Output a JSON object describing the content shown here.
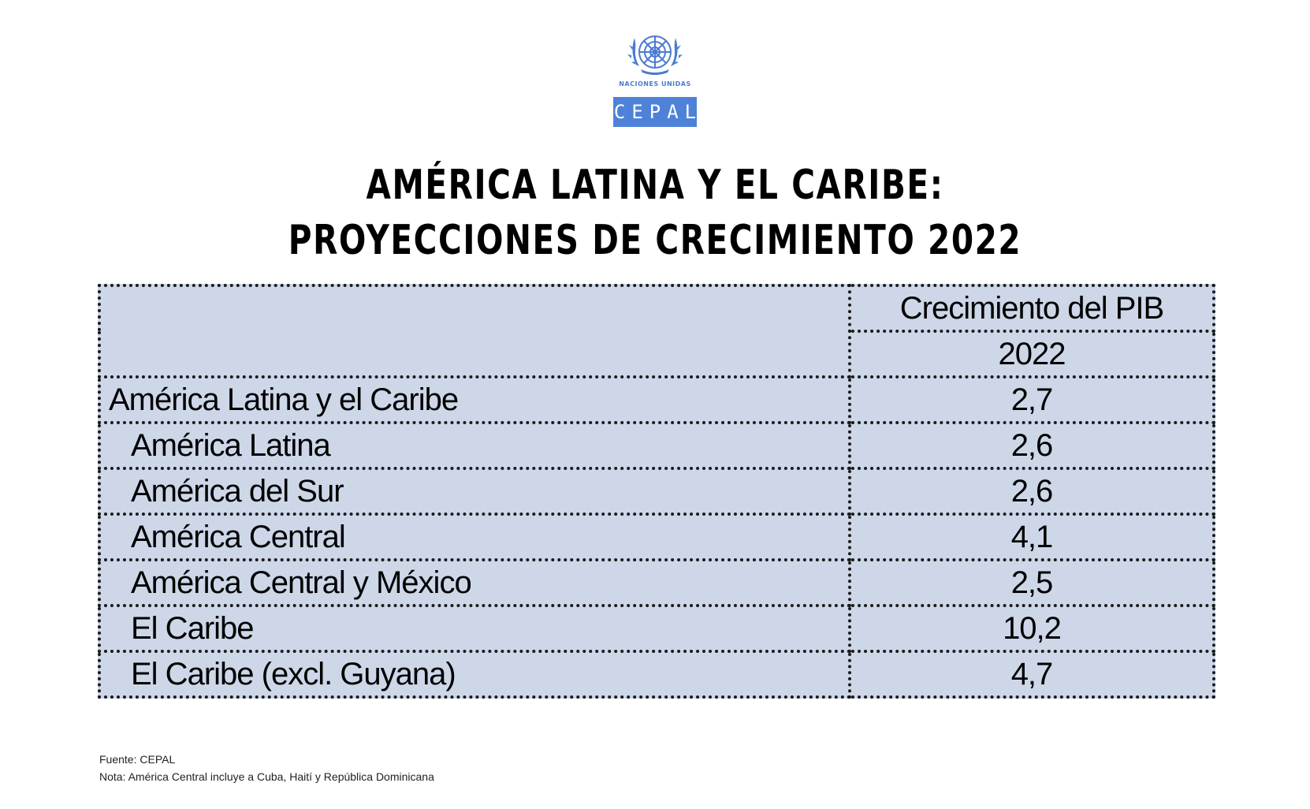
{
  "logo": {
    "org_label": "Naciones Unidas",
    "agency": "CEPAL",
    "emblem_icon": "un-emblem-icon",
    "emblem_color": "#4a7bd0",
    "agency_bg_color": "#4e82d9"
  },
  "title": {
    "line1": "AMÉRICA LATINA Y EL CARIBE:",
    "line2": "PROYECCIONES DE CRECIMIENTO 2022"
  },
  "table": {
    "header_metric": "Crecimiento del PIB",
    "header_year": "2022",
    "fill_color": "#cdd7e8",
    "rows": [
      {
        "region": "América Latina y el Caribe",
        "value": "2,7"
      },
      {
        "region": "América Latina",
        "value": "2,6"
      },
      {
        "region": "América del Sur",
        "value": "2,6"
      },
      {
        "region": "América Central",
        "value": "4,1"
      },
      {
        "region": "América Central y México",
        "value": "2,5"
      },
      {
        "region": "El Caribe",
        "value": "10,2"
      },
      {
        "region": "El Caribe (excl. Guyana)",
        "value": "4,7"
      }
    ]
  },
  "footer": {
    "source": "Fuente: CEPAL",
    "note": "Nota: América Central incluye a Cuba, Haití y República Dominicana"
  }
}
